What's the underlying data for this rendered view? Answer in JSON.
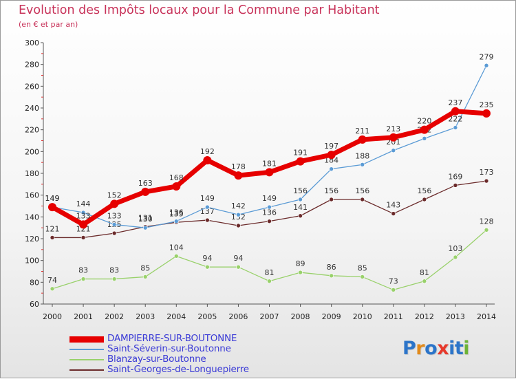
{
  "title": "Evolution des Impôts locaux pour la Commune par Habitant",
  "subtitle": "(en € et par an)",
  "logo": {
    "text": "Proxiti",
    "letter_colors": [
      "#2b74c9",
      "#e28a1b",
      "#2b74c9",
      "#e7392b",
      "#2b74c9",
      "#2b74c9",
      "#6db336"
    ]
  },
  "chart_data": {
    "type": "line",
    "x": [
      "2000",
      "2001",
      "2002",
      "2003",
      "2004",
      "2005",
      "2006",
      "2007",
      "2008",
      "2009",
      "2010",
      "2011",
      "2012",
      "2013",
      "2014"
    ],
    "ylim": [
      60,
      300
    ],
    "yticks": [
      60,
      80,
      100,
      120,
      140,
      160,
      180,
      200,
      220,
      240,
      260,
      280,
      300
    ],
    "grid": false,
    "legend_position": "bottom-left",
    "series": [
      {
        "name": "DAMPIERRE-SUR-BOUTONNE",
        "color": "#e60000",
        "values": [
          149,
          133,
          152,
          163,
          168,
          192,
          178,
          181,
          191,
          197,
          211,
          213,
          220,
          237,
          235
        ]
      },
      {
        "name": "Saint-Séverin-sur-Boutonne",
        "color": "#5b9bd5",
        "values": [
          149,
          144,
          133,
          130,
          136,
          149,
          142,
          149,
          156,
          184,
          188,
          201,
          212,
          222,
          279
        ]
      },
      {
        "name": "Blanzay-sur-Boutonne",
        "color": "#99d16b",
        "values": [
          74,
          83,
          83,
          85,
          104,
          94,
          94,
          81,
          89,
          86,
          85,
          73,
          81,
          103,
          128
        ]
      },
      {
        "name": "Saint-Georges-de-Longuepierre",
        "color": "#6b2b2b",
        "values": [
          121,
          121,
          125,
          131,
          135,
          137,
          132,
          136,
          141,
          156,
          156,
          143,
          156,
          169,
          173
        ]
      }
    ]
  }
}
